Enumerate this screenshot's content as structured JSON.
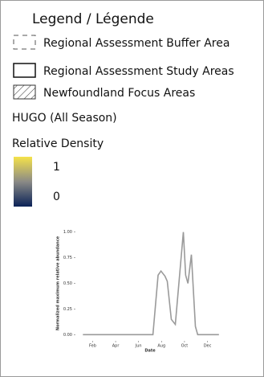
{
  "legend": {
    "title": "Legend / Légende",
    "items": [
      "Regional Assessment Buffer Area",
      "Regional Assessment Study Areas",
      "Newfoundland Focus Areas"
    ],
    "species": "HUGO (All Season)",
    "density_title": "Relative Density",
    "colorbar": {
      "max_label": "1",
      "min_label": "0",
      "colors": [
        "#f5e24a",
        "#8a8a86",
        "#0b2257"
      ]
    }
  },
  "chart_data": {
    "type": "line",
    "x_label": "Date",
    "y_label": "Normalized maximum relative abundance",
    "color": "#9a9a9a",
    "x": [
      1.15,
      7.25,
      7.7,
      7.95,
      8.3,
      8.5,
      8.85,
      9.2,
      9.9,
      10.1,
      10.3,
      10.6,
      10.95,
      11.15,
      13.0
    ],
    "values": [
      0,
      0,
      0.58,
      0.62,
      0.57,
      0.52,
      0.15,
      0.1,
      1.0,
      0.58,
      0.5,
      0.78,
      0.08,
      0,
      0
    ],
    "xlim": [
      0.5,
      13.5
    ],
    "xticks": [
      {
        "value": 2,
        "label": "Feb"
      },
      {
        "value": 4,
        "label": "Apr"
      },
      {
        "value": 6,
        "label": "Jun"
      },
      {
        "value": 8,
        "label": "Aug"
      },
      {
        "value": 10,
        "label": "Oct"
      },
      {
        "value": 12,
        "label": "Dec"
      }
    ],
    "ylim": [
      -0.06,
      1.06
    ],
    "yticks": [
      {
        "value": 0,
        "label": "0.00"
      },
      {
        "value": 0.25,
        "label": "0.25"
      },
      {
        "value": 0.5,
        "label": "0.50"
      },
      {
        "value": 0.75,
        "label": "0.75"
      },
      {
        "value": 1,
        "label": "1.00"
      }
    ]
  }
}
